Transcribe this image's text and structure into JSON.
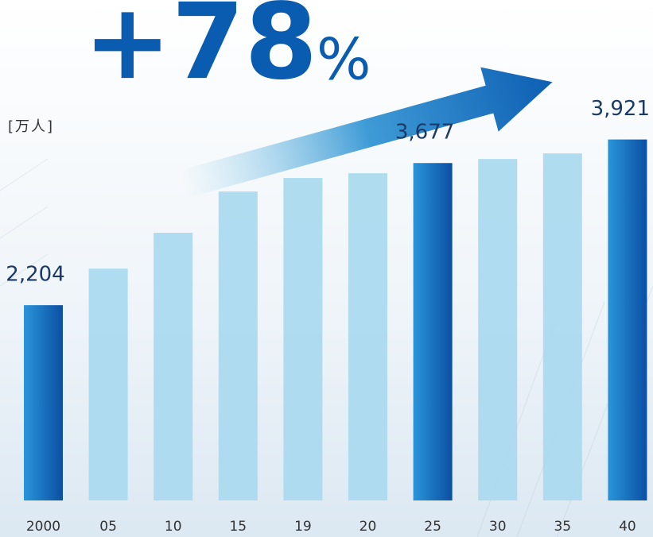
{
  "chart_data": {
    "type": "bar",
    "annotation": {
      "text": "+78",
      "unit": "%"
    },
    "unit_label": "[万人]",
    "categories": [
      "2000",
      "05",
      "10",
      "15",
      "19",
      "20",
      "25",
      "30",
      "35",
      "40"
    ],
    "values": [
      2204,
      2583,
      2954,
      3382,
      3522,
      3571,
      3677,
      3719,
      3777,
      3921
    ],
    "value_labels": [
      "2,204",
      null,
      null,
      null,
      null,
      null,
      "3,677",
      null,
      null,
      "3,921"
    ],
    "colors": [
      "#1068bd",
      "#a9d9ef",
      "#a9d9ef",
      "#a9d9ef",
      "#a9d9ef",
      "#a9d9ef",
      "#1068bd",
      "#a9d9ef",
      "#a9d9ef",
      "#1068bd"
    ],
    "ylim": [
      180,
      4000
    ]
  }
}
